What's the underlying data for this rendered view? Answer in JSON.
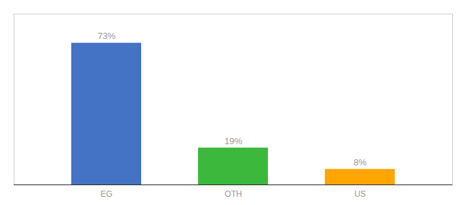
{
  "chart_data": {
    "type": "bar",
    "categories": [
      "EG",
      "OTH",
      "US"
    ],
    "values": [
      73,
      19,
      8
    ],
    "value_labels": [
      "73%",
      "19%",
      "8%"
    ],
    "colors": [
      "#4472C4",
      "#3CB93C",
      "#FFA500"
    ],
    "ylim": [
      0,
      88
    ],
    "data_labels": true,
    "tick_labels": "x"
  }
}
